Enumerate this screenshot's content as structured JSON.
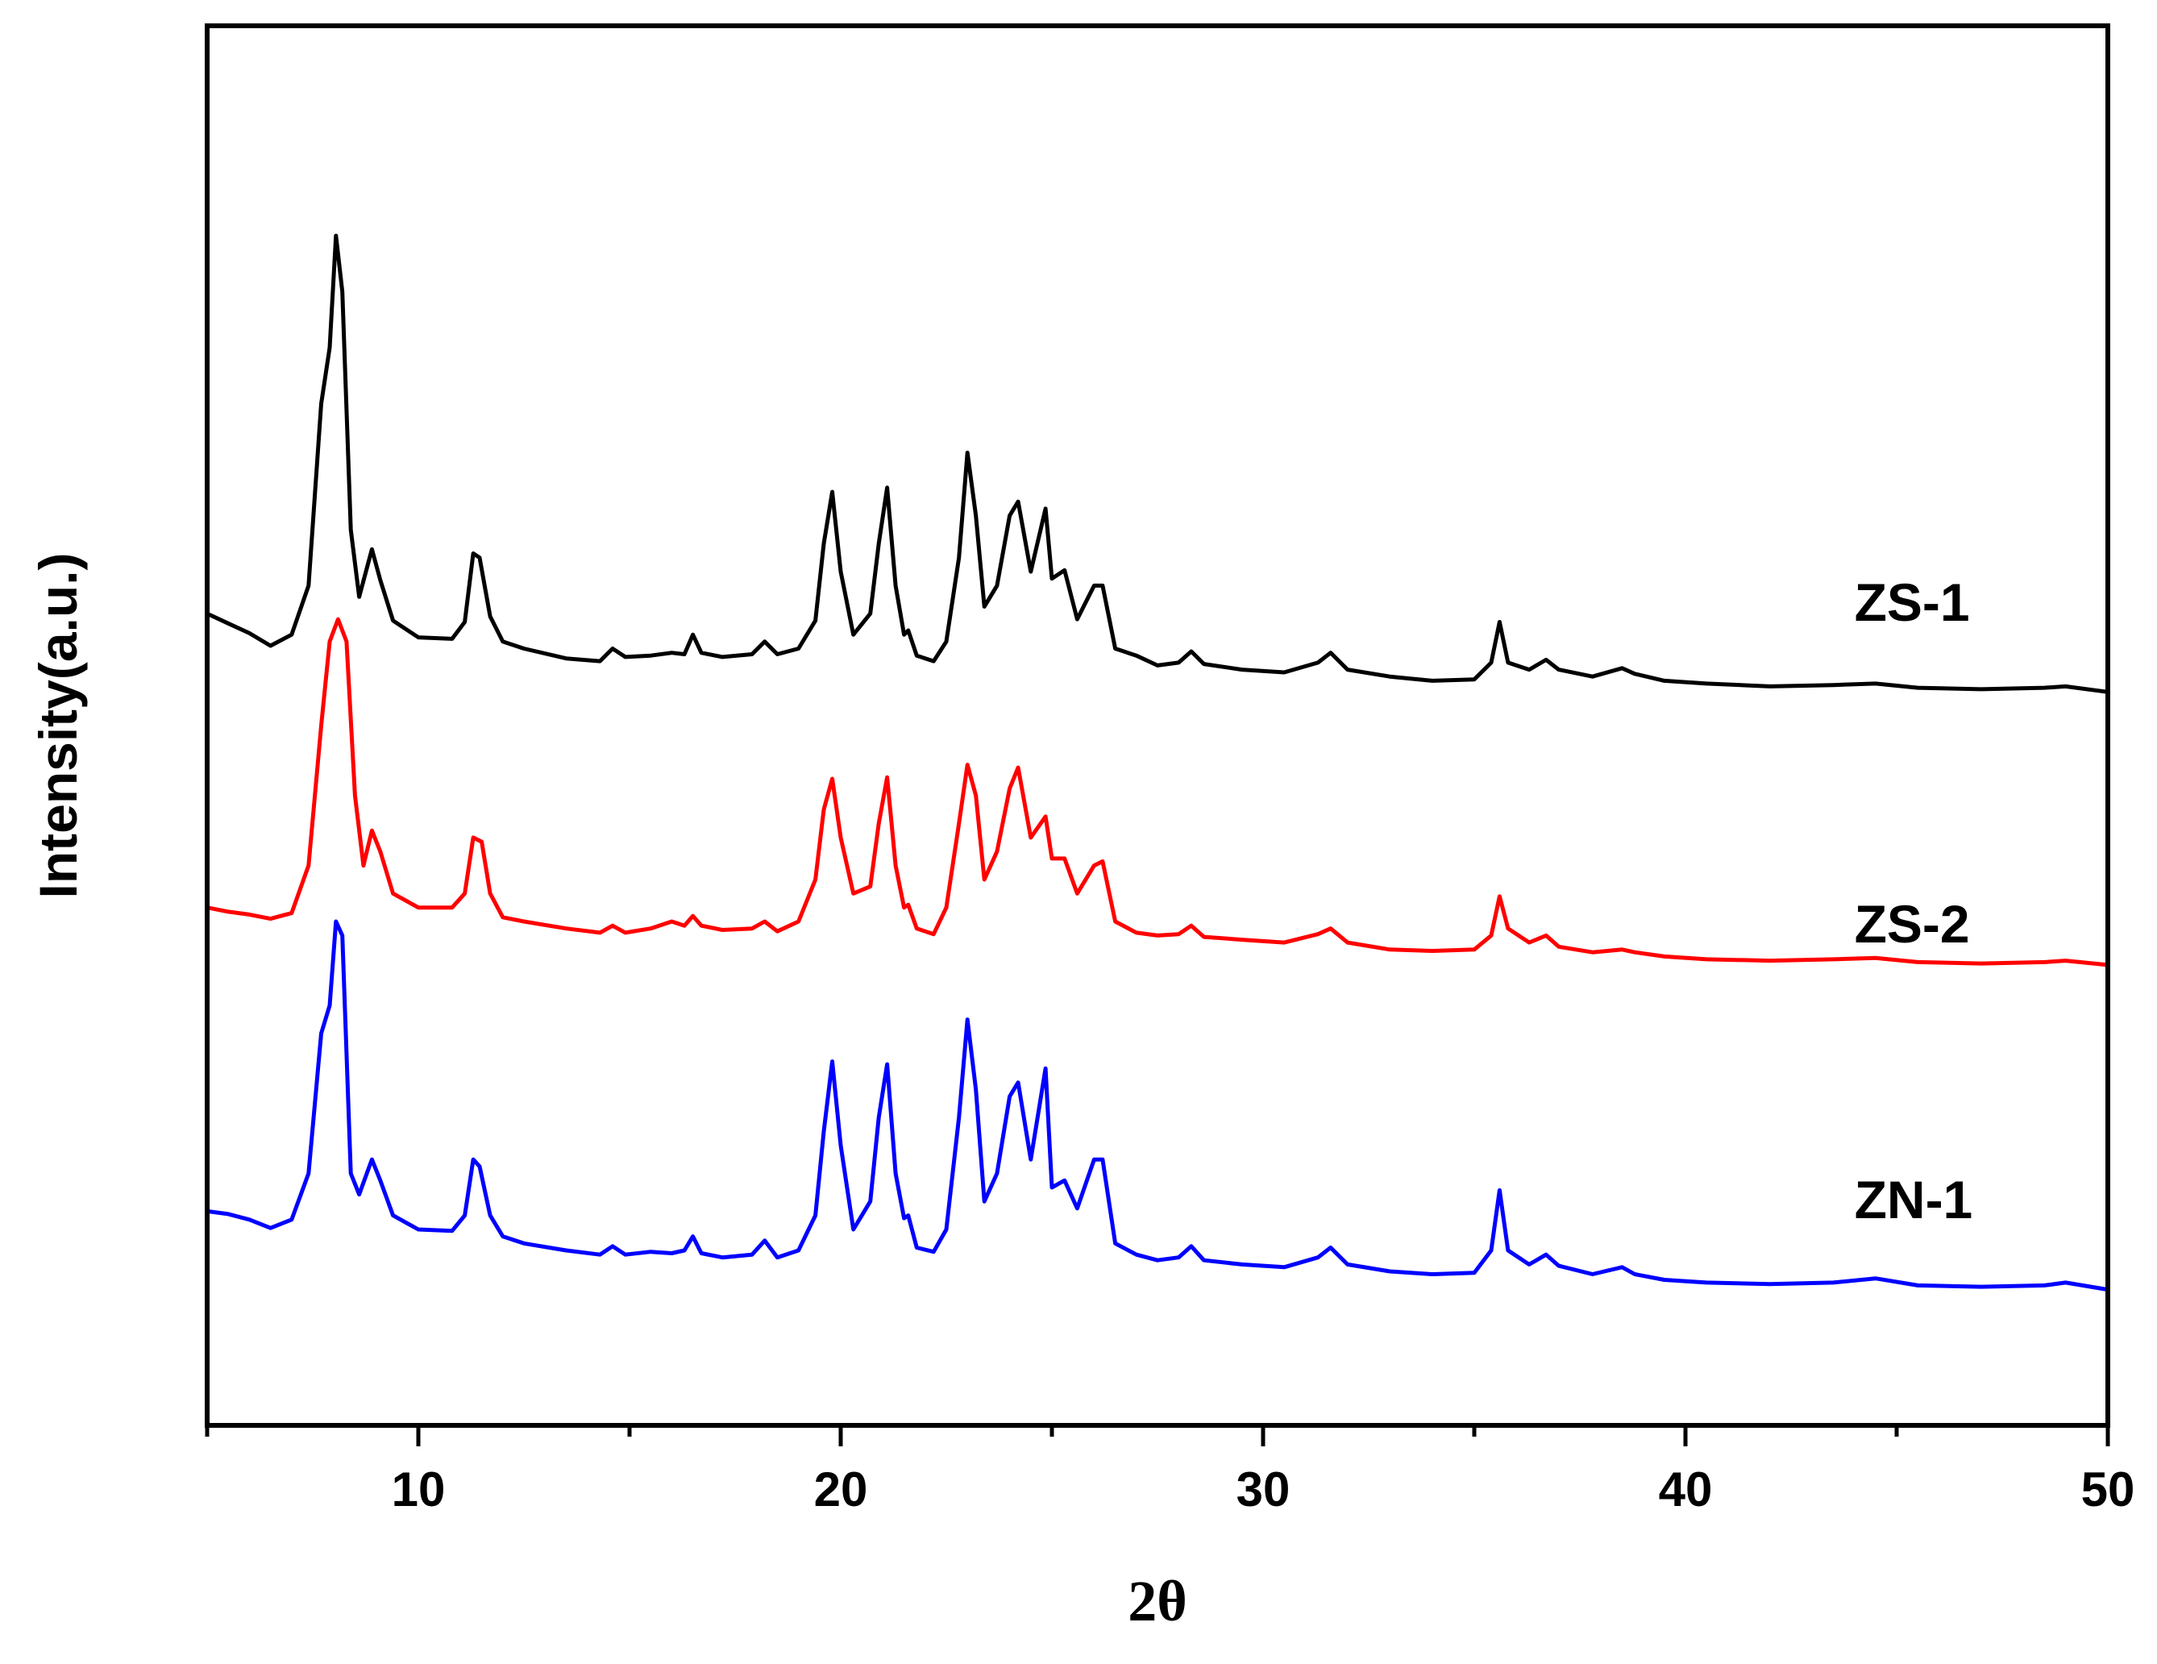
{
  "chart_data": {
    "type": "line",
    "title": "",
    "xlabel": "2θ",
    "ylabel": "Intensity(a.u.)",
    "xlim": [
      5,
      50
    ],
    "ylim": [
      0,
      1
    ],
    "x_ticks": [
      {
        "value": 10,
        "label": "10"
      },
      {
        "value": 20,
        "label": "20"
      },
      {
        "value": 30,
        "label": "30"
      },
      {
        "value": 40,
        "label": "40"
      },
      {
        "value": 50,
        "label": "50"
      }
    ],
    "x_minor_ticks": [
      5,
      15,
      25,
      35,
      45
    ],
    "y_ticks_shown": false,
    "grid": false,
    "legend": "labels next to curves (right side)",
    "series": [
      {
        "name": "ZS-1",
        "color": "#000000",
        "label_anchor": {
          "x": 44,
          "y": 0.575
        },
        "points": [
          [
            5.0,
            0.58
          ],
          [
            5.5,
            0.573
          ],
          [
            6.0,
            0.566
          ],
          [
            6.5,
            0.557
          ],
          [
            7.0,
            0.565
          ],
          [
            7.4,
            0.6
          ],
          [
            7.7,
            0.73
          ],
          [
            7.9,
            0.77
          ],
          [
            8.05,
            0.85
          ],
          [
            8.2,
            0.81
          ],
          [
            8.4,
            0.64
          ],
          [
            8.6,
            0.592
          ],
          [
            8.9,
            0.626
          ],
          [
            9.1,
            0.604
          ],
          [
            9.4,
            0.575
          ],
          [
            10.0,
            0.563
          ],
          [
            10.8,
            0.562
          ],
          [
            11.1,
            0.574
          ],
          [
            11.3,
            0.623
          ],
          [
            11.45,
            0.62
          ],
          [
            11.7,
            0.578
          ],
          [
            12.0,
            0.56
          ],
          [
            12.5,
            0.555
          ],
          [
            13.5,
            0.548
          ],
          [
            14.3,
            0.546
          ],
          [
            14.6,
            0.555
          ],
          [
            14.9,
            0.549
          ],
          [
            15.5,
            0.55
          ],
          [
            16.0,
            0.552
          ],
          [
            16.3,
            0.551
          ],
          [
            16.5,
            0.565
          ],
          [
            16.7,
            0.552
          ],
          [
            17.2,
            0.549
          ],
          [
            17.9,
            0.551
          ],
          [
            18.2,
            0.56
          ],
          [
            18.5,
            0.551
          ],
          [
            19.0,
            0.555
          ],
          [
            19.4,
            0.575
          ],
          [
            19.6,
            0.63
          ],
          [
            19.8,
            0.667
          ],
          [
            20.0,
            0.61
          ],
          [
            20.3,
            0.565
          ],
          [
            20.7,
            0.58
          ],
          [
            20.9,
            0.63
          ],
          [
            21.1,
            0.67
          ],
          [
            21.3,
            0.6
          ],
          [
            21.5,
            0.565
          ],
          [
            21.6,
            0.568
          ],
          [
            21.8,
            0.55
          ],
          [
            22.2,
            0.546
          ],
          [
            22.5,
            0.56
          ],
          [
            22.8,
            0.62
          ],
          [
            23.0,
            0.695
          ],
          [
            23.2,
            0.65
          ],
          [
            23.4,
            0.585
          ],
          [
            23.7,
            0.6
          ],
          [
            24.0,
            0.65
          ],
          [
            24.2,
            0.66
          ],
          [
            24.5,
            0.61
          ],
          [
            24.85,
            0.655
          ],
          [
            25.0,
            0.605
          ],
          [
            25.3,
            0.611
          ],
          [
            25.6,
            0.576
          ],
          [
            26.0,
            0.6
          ],
          [
            26.2,
            0.6
          ],
          [
            26.5,
            0.555
          ],
          [
            27.0,
            0.55
          ],
          [
            27.5,
            0.543
          ],
          [
            28.0,
            0.545
          ],
          [
            28.3,
            0.553
          ],
          [
            28.6,
            0.544
          ],
          [
            29.5,
            0.54
          ],
          [
            30.5,
            0.538
          ],
          [
            31.3,
            0.545
          ],
          [
            31.6,
            0.552
          ],
          [
            32.0,
            0.54
          ],
          [
            33.0,
            0.535
          ],
          [
            34.0,
            0.532
          ],
          [
            35.0,
            0.533
          ],
          [
            35.4,
            0.545
          ],
          [
            35.6,
            0.574
          ],
          [
            35.8,
            0.545
          ],
          [
            36.3,
            0.54
          ],
          [
            36.7,
            0.547
          ],
          [
            37.0,
            0.54
          ],
          [
            37.8,
            0.535
          ],
          [
            38.5,
            0.541
          ],
          [
            38.8,
            0.537
          ],
          [
            39.5,
            0.532
          ],
          [
            40.5,
            0.53
          ],
          [
            42.0,
            0.528
          ],
          [
            43.5,
            0.529
          ],
          [
            44.5,
            0.53
          ],
          [
            45.5,
            0.527
          ],
          [
            47.0,
            0.526
          ],
          [
            48.5,
            0.527
          ],
          [
            49.0,
            0.528
          ],
          [
            50.0,
            0.524
          ]
        ]
      },
      {
        "name": "ZS-2",
        "color": "#ff0000",
        "label_anchor": {
          "x": 44,
          "y": 0.345
        },
        "points": [
          [
            5.0,
            0.37
          ],
          [
            5.5,
            0.367
          ],
          [
            6.0,
            0.365
          ],
          [
            6.5,
            0.362
          ],
          [
            7.0,
            0.366
          ],
          [
            7.4,
            0.4
          ],
          [
            7.7,
            0.5
          ],
          [
            7.9,
            0.56
          ],
          [
            8.1,
            0.576
          ],
          [
            8.3,
            0.56
          ],
          [
            8.5,
            0.45
          ],
          [
            8.7,
            0.4
          ],
          [
            8.9,
            0.425
          ],
          [
            9.1,
            0.41
          ],
          [
            9.4,
            0.38
          ],
          [
            10.0,
            0.37
          ],
          [
            10.8,
            0.37
          ],
          [
            11.1,
            0.38
          ],
          [
            11.3,
            0.42
          ],
          [
            11.5,
            0.417
          ],
          [
            11.7,
            0.38
          ],
          [
            12.0,
            0.363
          ],
          [
            12.5,
            0.36
          ],
          [
            13.5,
            0.355
          ],
          [
            14.3,
            0.352
          ],
          [
            14.6,
            0.357
          ],
          [
            14.9,
            0.352
          ],
          [
            15.5,
            0.355
          ],
          [
            16.0,
            0.36
          ],
          [
            16.3,
            0.357
          ],
          [
            16.5,
            0.364
          ],
          [
            16.7,
            0.357
          ],
          [
            17.2,
            0.354
          ],
          [
            17.9,
            0.355
          ],
          [
            18.2,
            0.36
          ],
          [
            18.5,
            0.353
          ],
          [
            19.0,
            0.36
          ],
          [
            19.4,
            0.39
          ],
          [
            19.6,
            0.44
          ],
          [
            19.8,
            0.462
          ],
          [
            20.0,
            0.42
          ],
          [
            20.3,
            0.38
          ],
          [
            20.7,
            0.385
          ],
          [
            20.9,
            0.43
          ],
          [
            21.1,
            0.463
          ],
          [
            21.3,
            0.4
          ],
          [
            21.5,
            0.37
          ],
          [
            21.6,
            0.372
          ],
          [
            21.8,
            0.355
          ],
          [
            22.2,
            0.351
          ],
          [
            22.5,
            0.37
          ],
          [
            22.8,
            0.43
          ],
          [
            23.0,
            0.472
          ],
          [
            23.2,
            0.45
          ],
          [
            23.4,
            0.39
          ],
          [
            23.7,
            0.41
          ],
          [
            24.0,
            0.455
          ],
          [
            24.2,
            0.47
          ],
          [
            24.5,
            0.42
          ],
          [
            24.85,
            0.435
          ],
          [
            25.0,
            0.405
          ],
          [
            25.3,
            0.405
          ],
          [
            25.6,
            0.38
          ],
          [
            26.0,
            0.4
          ],
          [
            26.2,
            0.403
          ],
          [
            26.5,
            0.36
          ],
          [
            27.0,
            0.352
          ],
          [
            27.5,
            0.35
          ],
          [
            28.0,
            0.351
          ],
          [
            28.3,
            0.357
          ],
          [
            28.6,
            0.349
          ],
          [
            29.5,
            0.347
          ],
          [
            30.5,
            0.345
          ],
          [
            31.3,
            0.351
          ],
          [
            31.6,
            0.355
          ],
          [
            32.0,
            0.345
          ],
          [
            33.0,
            0.34
          ],
          [
            34.0,
            0.339
          ],
          [
            35.0,
            0.34
          ],
          [
            35.4,
            0.35
          ],
          [
            35.6,
            0.378
          ],
          [
            35.8,
            0.355
          ],
          [
            36.3,
            0.345
          ],
          [
            36.7,
            0.35
          ],
          [
            37.0,
            0.342
          ],
          [
            37.8,
            0.338
          ],
          [
            38.5,
            0.34
          ],
          [
            38.8,
            0.338
          ],
          [
            39.5,
            0.335
          ],
          [
            40.5,
            0.333
          ],
          [
            42.0,
            0.332
          ],
          [
            43.5,
            0.333
          ],
          [
            44.5,
            0.334
          ],
          [
            45.5,
            0.331
          ],
          [
            47.0,
            0.33
          ],
          [
            48.5,
            0.331
          ],
          [
            49.0,
            0.332
          ],
          [
            50.0,
            0.329
          ]
        ]
      },
      {
        "name": "ZN-1",
        "color": "#0000ff",
        "label_anchor": {
          "x": 44,
          "y": 0.148
        },
        "points": [
          [
            5.0,
            0.153
          ],
          [
            5.5,
            0.151
          ],
          [
            6.0,
            0.147
          ],
          [
            6.5,
            0.141
          ],
          [
            7.0,
            0.147
          ],
          [
            7.4,
            0.18
          ],
          [
            7.7,
            0.28
          ],
          [
            7.9,
            0.3
          ],
          [
            8.05,
            0.36
          ],
          [
            8.2,
            0.35
          ],
          [
            8.4,
            0.18
          ],
          [
            8.6,
            0.165
          ],
          [
            8.9,
            0.19
          ],
          [
            9.1,
            0.175
          ],
          [
            9.4,
            0.15
          ],
          [
            10.0,
            0.14
          ],
          [
            10.8,
            0.139
          ],
          [
            11.1,
            0.15
          ],
          [
            11.3,
            0.19
          ],
          [
            11.45,
            0.185
          ],
          [
            11.7,
            0.15
          ],
          [
            12.0,
            0.135
          ],
          [
            12.5,
            0.13
          ],
          [
            13.5,
            0.125
          ],
          [
            14.3,
            0.122
          ],
          [
            14.6,
            0.128
          ],
          [
            14.9,
            0.122
          ],
          [
            15.5,
            0.124
          ],
          [
            16.0,
            0.123
          ],
          [
            16.3,
            0.125
          ],
          [
            16.5,
            0.135
          ],
          [
            16.7,
            0.123
          ],
          [
            17.2,
            0.12
          ],
          [
            17.9,
            0.122
          ],
          [
            18.2,
            0.132
          ],
          [
            18.5,
            0.12
          ],
          [
            19.0,
            0.125
          ],
          [
            19.4,
            0.15
          ],
          [
            19.6,
            0.21
          ],
          [
            19.8,
            0.26
          ],
          [
            20.0,
            0.2
          ],
          [
            20.3,
            0.14
          ],
          [
            20.7,
            0.16
          ],
          [
            20.9,
            0.22
          ],
          [
            21.1,
            0.258
          ],
          [
            21.3,
            0.18
          ],
          [
            21.5,
            0.148
          ],
          [
            21.6,
            0.15
          ],
          [
            21.8,
            0.127
          ],
          [
            22.2,
            0.124
          ],
          [
            22.5,
            0.14
          ],
          [
            22.8,
            0.22
          ],
          [
            23.0,
            0.29
          ],
          [
            23.2,
            0.24
          ],
          [
            23.4,
            0.16
          ],
          [
            23.7,
            0.18
          ],
          [
            24.0,
            0.235
          ],
          [
            24.2,
            0.245
          ],
          [
            24.5,
            0.19
          ],
          [
            24.85,
            0.255
          ],
          [
            25.0,
            0.17
          ],
          [
            25.3,
            0.175
          ],
          [
            25.6,
            0.155
          ],
          [
            26.0,
            0.19
          ],
          [
            26.2,
            0.19
          ],
          [
            26.5,
            0.13
          ],
          [
            27.0,
            0.122
          ],
          [
            27.5,
            0.118
          ],
          [
            28.0,
            0.12
          ],
          [
            28.3,
            0.128
          ],
          [
            28.6,
            0.118
          ],
          [
            29.5,
            0.115
          ],
          [
            30.5,
            0.113
          ],
          [
            31.3,
            0.12
          ],
          [
            31.6,
            0.127
          ],
          [
            32.0,
            0.115
          ],
          [
            33.0,
            0.11
          ],
          [
            34.0,
            0.108
          ],
          [
            35.0,
            0.109
          ],
          [
            35.4,
            0.125
          ],
          [
            35.6,
            0.168
          ],
          [
            35.8,
            0.125
          ],
          [
            36.3,
            0.115
          ],
          [
            36.7,
            0.122
          ],
          [
            37.0,
            0.114
          ],
          [
            37.8,
            0.108
          ],
          [
            38.5,
            0.113
          ],
          [
            38.8,
            0.108
          ],
          [
            39.5,
            0.104
          ],
          [
            40.5,
            0.102
          ],
          [
            42.0,
            0.101
          ],
          [
            43.5,
            0.102
          ],
          [
            44.5,
            0.105
          ],
          [
            45.5,
            0.1
          ],
          [
            47.0,
            0.099
          ],
          [
            48.5,
            0.1
          ],
          [
            49.0,
            0.102
          ],
          [
            50.0,
            0.097
          ]
        ]
      }
    ]
  }
}
